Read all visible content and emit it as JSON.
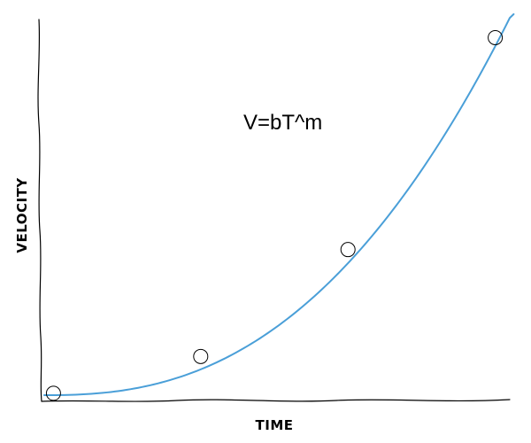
{
  "chart_data": {
    "type": "line",
    "title": "",
    "annotation": "V=bT^m",
    "xlabel": "TIME",
    "ylabel": "VELOCITY",
    "xlim": [
      0,
      10
    ],
    "ylim": [
      0,
      10
    ],
    "grid": false,
    "legend": "none",
    "series": [
      {
        "name": "",
        "color": "#4a9fd8",
        "curve": {
          "b": 0.0345,
          "m": 2.46,
          "x_start": 0,
          "x_end": 10.2
        },
        "markers": {
          "x": [
            0.2,
            3.4,
            6.6,
            9.8
          ],
          "y": [
            0.05,
            1.05,
            3.95,
            9.7
          ]
        }
      }
    ]
  }
}
